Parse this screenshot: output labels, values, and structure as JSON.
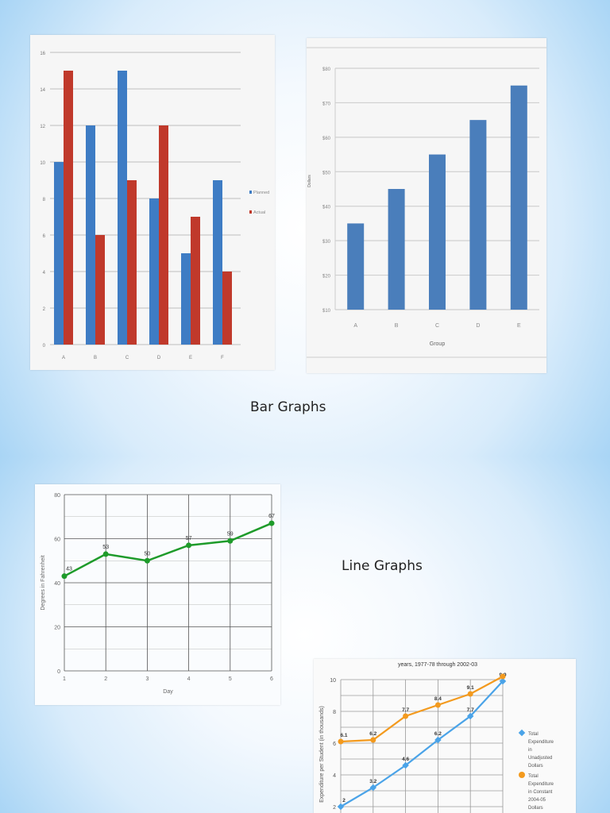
{
  "slides": [
    {
      "caption": "Bar Graphs"
    },
    {
      "caption": "Line Graphs"
    }
  ],
  "colors": {
    "blue": "#3e7cc4",
    "red": "#c0392b",
    "steel_blue": "#4a7ebb",
    "green": "#1e9b2a",
    "orange": "#f39a1e",
    "light_blue": "#4aa3e8"
  },
  "chart_data": [
    {
      "type": "bar",
      "title": "",
      "categories": [
        "A",
        "B",
        "C",
        "D",
        "E",
        "F"
      ],
      "series": [
        {
          "name": "Planned",
          "values": [
            10,
            12,
            15,
            8,
            5,
            9
          ]
        },
        {
          "name": "Actual",
          "values": [
            15,
            6,
            9,
            12,
            7,
            4
          ]
        }
      ],
      "yticks": [
        "0",
        "2",
        "4",
        "6",
        "8",
        "10",
        "12",
        "14",
        "16"
      ],
      "ylim": [
        0,
        16
      ],
      "xlabel": "",
      "ylabel": "",
      "legend_position": "right",
      "grid": true
    },
    {
      "type": "bar",
      "title": "",
      "categories": [
        "A",
        "B",
        "C",
        "D",
        "E"
      ],
      "values": [
        35,
        45,
        55,
        65,
        75
      ],
      "yticks": [
        "$10",
        "$20",
        "$30",
        "$40",
        "$50",
        "$60",
        "$70",
        "$80"
      ],
      "ylim": [
        10,
        80
      ],
      "xlabel": "Group",
      "ylabel": "Dollars",
      "grid": true
    },
    {
      "type": "line",
      "title": "",
      "x": [
        1,
        2,
        3,
        4,
        5,
        6
      ],
      "values": [
        43,
        53,
        50,
        57,
        59,
        67
      ],
      "labels": [
        "43",
        "53",
        "50",
        "57",
        "59",
        "67"
      ],
      "yticks": [
        "0",
        "20",
        "40",
        "60",
        "80"
      ],
      "xticks": [
        "1",
        "2",
        "3",
        "4",
        "5",
        "6"
      ],
      "ylim": [
        0,
        80
      ],
      "xlabel": "Day",
      "ylabel": "Degrees in Fahrenheit",
      "grid": true
    },
    {
      "type": "line",
      "title": "years, 1977-78 through 2002-03",
      "x": [
        1,
        2,
        3,
        4,
        5,
        6
      ],
      "series": [
        {
          "name": "Total Expenditure in Unadjusted Dollars",
          "values": [
            2,
            3.2,
            4.6,
            6.2,
            7.7,
            9.9
          ],
          "labels": [
            "2",
            "3.2",
            "4.6",
            "6.2",
            "7.7",
            "9.9"
          ]
        },
        {
          "name": "Total Expenditure in Constant 2004-05 Dollars",
          "values": [
            6.1,
            6.2,
            7.7,
            8.4,
            9.1,
            10.2
          ],
          "labels": [
            "6.1",
            "6.2",
            "7.7",
            "8.4",
            "9.1",
            ""
          ]
        }
      ],
      "yticks": [
        "2",
        "4",
        "6",
        "8",
        "10"
      ],
      "ylim": [
        2,
        10
      ],
      "xlabel": "",
      "ylabel": "Expenditure per Student (in thousands)",
      "legend_position": "right",
      "grid": true
    }
  ]
}
